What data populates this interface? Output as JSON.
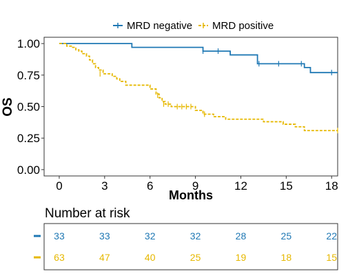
{
  "chart_data": {
    "type": "line",
    "xlabel": "Months",
    "ylabel": "OS",
    "xlim": [
      -1,
      18.4
    ],
    "ylim": [
      -0.05,
      1.05
    ],
    "xticks": [
      "0",
      "3",
      "6",
      "9",
      "12",
      "15",
      "18"
    ],
    "yticks": [
      "0.00",
      "0.25",
      "0.50",
      "0.75",
      "1.00"
    ],
    "legend_placement": "top-center",
    "grid": false,
    "series": [
      {
        "name": "MRD negative",
        "color": "#1f78b4",
        "linestyle": "solid",
        "steps": [
          [
            0,
            1.0
          ],
          [
            4.8,
            0.97
          ],
          [
            9.5,
            0.94
          ],
          [
            11.3,
            0.91
          ],
          [
            13.1,
            0.84
          ],
          [
            16.2,
            0.81
          ],
          [
            16.6,
            0.77
          ],
          [
            18.4,
            0.77
          ]
        ],
        "censor": [
          [
            9.5,
            0.94
          ],
          [
            10.5,
            0.94
          ],
          [
            13.2,
            0.84
          ],
          [
            14.5,
            0.84
          ],
          [
            16.0,
            0.84
          ],
          [
            18.0,
            0.77
          ]
        ]
      },
      {
        "name": "MRD positive",
        "color": "#e6b800",
        "linestyle": "dashed",
        "steps": [
          [
            0,
            1.0
          ],
          [
            0.5,
            0.98
          ],
          [
            0.8,
            0.97
          ],
          [
            1.1,
            0.95
          ],
          [
            1.3,
            0.94
          ],
          [
            1.5,
            0.92
          ],
          [
            1.8,
            0.9
          ],
          [
            2.0,
            0.87
          ],
          [
            2.2,
            0.84
          ],
          [
            2.4,
            0.81
          ],
          [
            2.6,
            0.79
          ],
          [
            2.9,
            0.76
          ],
          [
            3.5,
            0.74
          ],
          [
            3.8,
            0.72
          ],
          [
            4.0,
            0.7
          ],
          [
            4.4,
            0.67
          ],
          [
            6.0,
            0.64
          ],
          [
            6.4,
            0.6
          ],
          [
            6.6,
            0.57
          ],
          [
            6.8,
            0.54
          ],
          [
            7.0,
            0.52
          ],
          [
            7.4,
            0.5
          ],
          [
            9.0,
            0.47
          ],
          [
            9.5,
            0.44
          ],
          [
            10.2,
            0.42
          ],
          [
            11.0,
            0.4
          ],
          [
            13.5,
            0.38
          ],
          [
            14.8,
            0.36
          ],
          [
            15.6,
            0.34
          ],
          [
            16.2,
            0.31
          ],
          [
            18.4,
            0.31
          ]
        ],
        "censor": [
          [
            2.7,
            0.76
          ],
          [
            6.5,
            0.59
          ],
          [
            6.9,
            0.52
          ],
          [
            7.2,
            0.52
          ],
          [
            7.8,
            0.5
          ],
          [
            8.1,
            0.5
          ],
          [
            8.4,
            0.5
          ],
          [
            8.7,
            0.5
          ],
          [
            9.6,
            0.44
          ],
          [
            18.4,
            0.31
          ]
        ]
      }
    ],
    "risk_table": {
      "title": "Number at risk",
      "times": [
        0,
        3,
        6,
        9,
        12,
        15,
        18
      ],
      "rows": [
        {
          "name": "MRD negative",
          "color": "#1f78b4",
          "counts": [
            33,
            33,
            32,
            32,
            28,
            25,
            22
          ]
        },
        {
          "name": "MRD positive",
          "color": "#e6b800",
          "counts": [
            63,
            47,
            40,
            25,
            19,
            18,
            15
          ]
        }
      ]
    }
  }
}
